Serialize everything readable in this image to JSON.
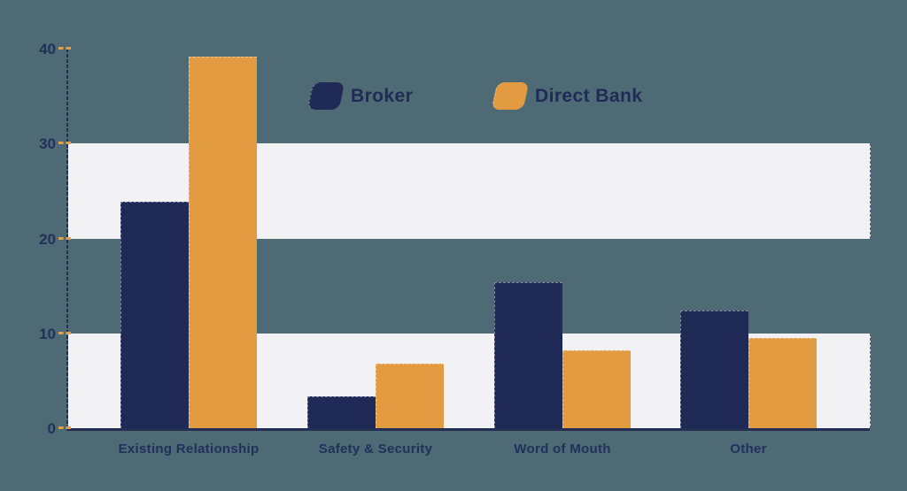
{
  "page": {
    "background_color": "#4e6a74"
  },
  "chart_data": {
    "type": "bar",
    "title": "",
    "xlabel": "",
    "ylabel": "",
    "categories": [
      "Existing Relationship",
      "Safety & Security",
      "Word of Mouth",
      "Other"
    ],
    "series": [
      {
        "name": "Broker",
        "color": "#1f2b56",
        "values": [
          23.9,
          3.4,
          15.4,
          12.4
        ]
      },
      {
        "name": "Direct Bank",
        "color": "#e29b41",
        "values": [
          39.2,
          6.8,
          8.2,
          9.5
        ]
      }
    ],
    "y_ticks": [
      0,
      10,
      20,
      30,
      40
    ],
    "ylim": [
      0,
      40
    ],
    "grid": "horizontal striped bands between 0-10 and 20-30",
    "legend_position": "top-center-inside",
    "colors": {
      "band": "#f2f1f3",
      "axis": "#242e52",
      "tick_dash": "#e2a04b",
      "label": "#22305c",
      "background": "#4e6a74"
    }
  }
}
